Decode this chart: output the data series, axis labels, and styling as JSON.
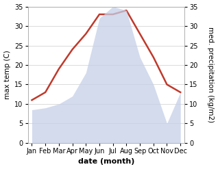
{
  "months": [
    "Jan",
    "Feb",
    "Mar",
    "Apr",
    "May",
    "Jun",
    "Jul",
    "Aug",
    "Sep",
    "Oct",
    "Nov",
    "Dec"
  ],
  "temperature": [
    11,
    13,
    19,
    24,
    28,
    33,
    33,
    34,
    28,
    22,
    15,
    13
  ],
  "precipitation": [
    8.5,
    9,
    10,
    12,
    18,
    32,
    35,
    34,
    22,
    15,
    5,
    13
  ],
  "temp_color": "#c0392b",
  "precip_fill_color": "#c5cfe8",
  "precip_alpha": 0.75,
  "background_color": "#ffffff",
  "xlabel": "date (month)",
  "ylabel_left": "max temp (C)",
  "ylabel_right": "med. precipitation (kg/m2)",
  "ylim": [
    0,
    35
  ],
  "yticks_left": [
    0,
    5,
    10,
    15,
    20,
    25,
    30,
    35
  ],
  "yticks_right": [
    0,
    5,
    10,
    15,
    20,
    25,
    30,
    35
  ],
  "grid_color": "#cccccc",
  "label_fontsize": 7.5,
  "tick_fontsize": 7,
  "xlabel_fontsize": 8,
  "temp_linewidth": 1.8
}
